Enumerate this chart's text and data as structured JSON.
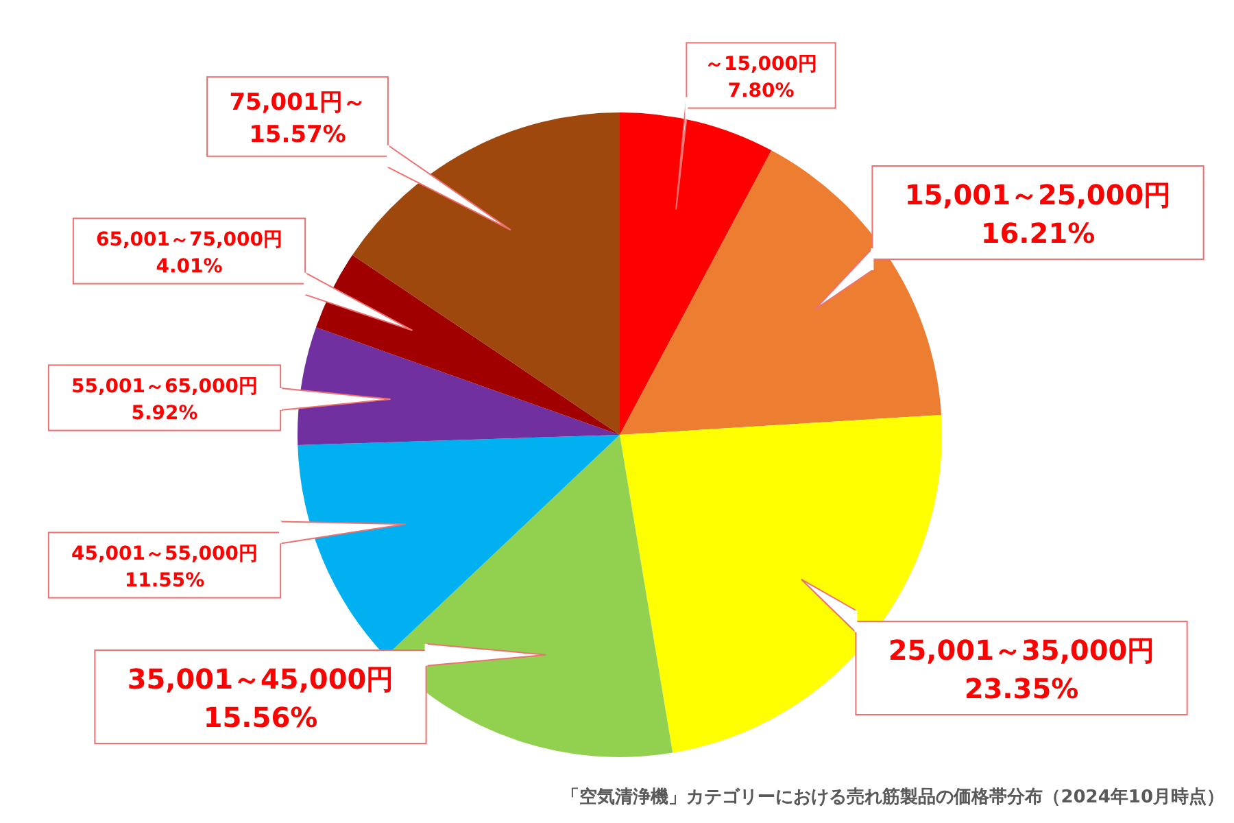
{
  "chart_data": {
    "type": "pie",
    "categories": [
      "～15,000円",
      "15,001～25,000円",
      "25,001～35,000円",
      "35,001～45,000円",
      "45,001～55,000円",
      "55,001～65,000円",
      "65,001～75,000円",
      "75,001円～"
    ],
    "values": [
      7.8,
      16.21,
      23.35,
      15.56,
      11.55,
      5.92,
      4.01,
      15.57
    ],
    "colors": [
      "#ff0000",
      "#ed7d31",
      "#ffff00",
      "#92d050",
      "#00b0f0",
      "#7030a0",
      "#a00000",
      "#9e480e"
    ],
    "value_labels": [
      "7.80%",
      "16.21%",
      "23.35%",
      "15.56%",
      "11.55%",
      "5.92%",
      "4.01%",
      "15.57%"
    ],
    "annotations": [
      "「空気清浄機」カテゴリーにおける売れ筋製品の価格帯分布（2024年10月時点）"
    ]
  }
}
